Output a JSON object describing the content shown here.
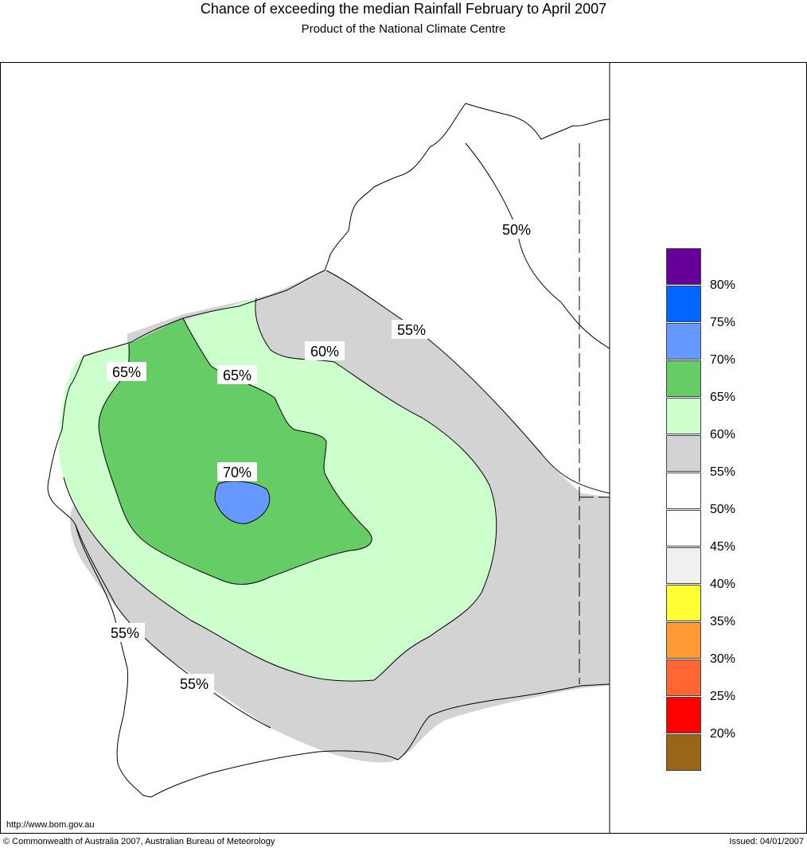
{
  "header": {
    "title": "Chance of exceeding the median Rainfall February to April 2007",
    "subtitle": "Product of the National Climate Centre"
  },
  "map": {
    "region": "Western Australia",
    "contour_labels": [
      "50%",
      "55%",
      "60%",
      "65%",
      "65%",
      "70%",
      "55%",
      "55%"
    ],
    "zone_colors": {
      "below_55": "#ffffff",
      "55_60": "#d3d3d3",
      "60_65": "#ccffcc",
      "65_70": "#66cc66",
      "70_75": "#6699ff"
    }
  },
  "legend": {
    "swatches": [
      {
        "color": "#660099"
      },
      {
        "color": "#0066ff"
      },
      {
        "color": "#6699ff"
      },
      {
        "color": "#66cc66"
      },
      {
        "color": "#ccffcc"
      },
      {
        "color": "#d3d3d3"
      },
      {
        "color": "#ffffff"
      },
      {
        "color": "#ffffff"
      },
      {
        "color": "#f0f0f0"
      },
      {
        "color": "#ffff33"
      },
      {
        "color": "#ff9933"
      },
      {
        "color": "#ff6633"
      },
      {
        "color": "#ff0000"
      },
      {
        "color": "#996619"
      }
    ],
    "labels": [
      "80%",
      "75%",
      "70%",
      "65%",
      "60%",
      "55%",
      "50%",
      "45%",
      "40%",
      "35%",
      "30%",
      "25%",
      "20%"
    ]
  },
  "footer": {
    "url": "http://www.bom.gov.au",
    "copyright": "© Commonwealth of Australia 2007, Australian Bureau of Meteorology",
    "issued": "Issued: 04/01/2007"
  }
}
